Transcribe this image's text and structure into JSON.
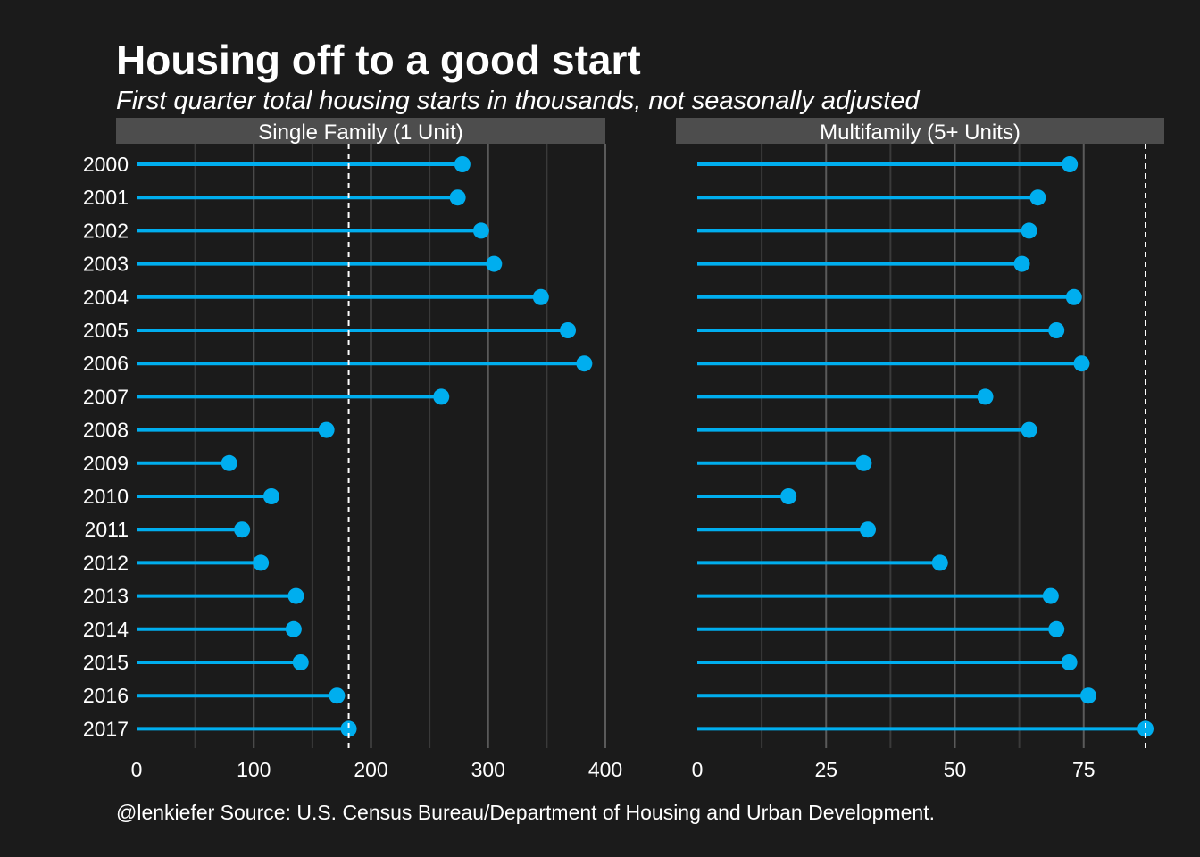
{
  "title": "Housing off to a good start",
  "subtitle": "First quarter total housing starts in thousands, not seasonally adjusted",
  "caption": "@lenkiefer Source: U.S. Census Bureau/Department of Housing and Urban Development.",
  "colors": {
    "background": "#1b1b1b",
    "strip": "#4d4d4d",
    "grid_major": "#5a5a5a",
    "grid_minor": "#3a3a3a",
    "lollipop": "#00aeef",
    "reference_line": "#ffffff",
    "text": "#ffffff"
  },
  "chart_data": [
    {
      "type": "lollipop",
      "facet": "Single Family (1 Unit)",
      "categories": [
        "2000",
        "2001",
        "2002",
        "2003",
        "2004",
        "2005",
        "2006",
        "2007",
        "2008",
        "2009",
        "2010",
        "2011",
        "2012",
        "2013",
        "2014",
        "2015",
        "2016",
        "2017"
      ],
      "values": [
        278,
        274,
        294,
        305,
        345,
        368,
        382,
        260,
        162,
        79,
        115,
        90,
        106,
        136,
        134,
        140,
        171,
        181
      ],
      "reference_value": 181,
      "reference_style": "dashed",
      "xlim": [
        0,
        400
      ],
      "xticks": [
        "0",
        "100",
        "200",
        "300",
        "400"
      ],
      "xtick_values": [
        0,
        100,
        200,
        300,
        400
      ],
      "grid": true
    },
    {
      "type": "lollipop",
      "facet": "Multifamily (5+ Units)",
      "categories": [
        "2000",
        "2001",
        "2002",
        "2003",
        "2004",
        "2005",
        "2006",
        "2007",
        "2008",
        "2009",
        "2010",
        "2011",
        "2012",
        "2013",
        "2014",
        "2015",
        "2016",
        "2017"
      ],
      "values": [
        72.3,
        66.1,
        64.4,
        63.0,
        73.1,
        69.7,
        74.6,
        55.9,
        64.4,
        32.3,
        17.7,
        33.1,
        47.1,
        68.6,
        69.7,
        72.2,
        75.9,
        87.0
      ],
      "reference_value": 87.0,
      "reference_style": "dashed",
      "xlim": [
        0,
        87
      ],
      "xticks": [
        "0",
        "25",
        "50",
        "75"
      ],
      "xtick_values": [
        0,
        25,
        50,
        75
      ],
      "grid": true
    }
  ]
}
